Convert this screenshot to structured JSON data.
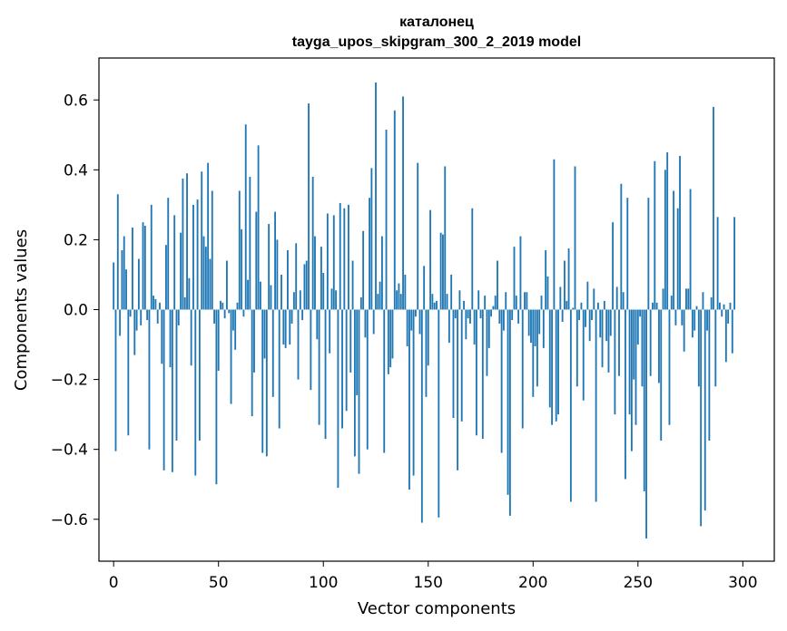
{
  "chart_data": {
    "type": "bar",
    "title_line1": "каталонец",
    "title_line2": "tayga_upos_skipgram_300_2_2019 model",
    "xlabel": "Vector components",
    "ylabel": "Components values",
    "xlim": [
      -7,
      315
    ],
    "ylim": [
      -0.72,
      0.72
    ],
    "x_ticks": [
      0,
      50,
      100,
      150,
      200,
      250,
      300
    ],
    "x_tick_labels": [
      "0",
      "50",
      "100",
      "150",
      "200",
      "250",
      "300"
    ],
    "y_ticks": [
      -0.6,
      -0.4,
      -0.2,
      0.0,
      0.2,
      0.4,
      0.6
    ],
    "y_tick_labels": [
      "−0.6",
      "−0.4",
      "−0.2",
      "0.0",
      "0.2",
      "0.4",
      "0.6"
    ],
    "bar_color": "#1f77b4",
    "grid": false,
    "values": [
      0.135,
      -0.405,
      0.33,
      -0.075,
      0.17,
      0.21,
      0.115,
      -0.36,
      -0.02,
      0.235,
      -0.13,
      -0.06,
      0.145,
      -0.045,
      0.25,
      0.24,
      -0.03,
      -0.4,
      0.3,
      0.04,
      0.03,
      -0.04,
      0.02,
      -0.155,
      -0.46,
      0.185,
      0.32,
      -0.165,
      -0.465,
      0.27,
      -0.375,
      -0.045,
      0.22,
      0.375,
      0.035,
      0.39,
      0.09,
      -0.16,
      0.3,
      -0.475,
      0.315,
      -0.375,
      0.395,
      0.21,
      0.18,
      0.42,
      0.145,
      0.34,
      -0.04,
      -0.5,
      -0.175,
      0.025,
      0.02,
      -0.025,
      0.14,
      -0.01,
      -0.27,
      -0.06,
      -0.115,
      0.02,
      0.34,
      0.23,
      -0.02,
      0.53,
      0.085,
      0.38,
      -0.305,
      -0.18,
      0.28,
      0.47,
      0.08,
      -0.41,
      -0.14,
      -0.42,
      0.245,
      0.07,
      -0.25,
      0.28,
      0.2,
      -0.34,
      0.1,
      -0.1,
      -0.11,
      0.17,
      -0.1,
      -0.04,
      0.05,
      0.19,
      -0.2,
      0.055,
      -0.03,
      0.13,
      0.14,
      0.59,
      -0.23,
      0.38,
      0.21,
      -0.085,
      -0.33,
      0.18,
      0.105,
      -0.37,
      0.275,
      -0.125,
      0.06,
      0.27,
      0.055,
      -0.51,
      0.305,
      -0.34,
      0.29,
      -0.29,
      0.3,
      -0.18,
      0.14,
      -0.42,
      -0.245,
      -0.47,
      0.035,
      0.225,
      -0.08,
      -0.4,
      0.32,
      0.405,
      -0.07,
      0.65,
      0.045,
      0.08,
      0.21,
      -0.41,
      0.515,
      -0.185,
      -0.165,
      -0.14,
      0.57,
      0.055,
      0.075,
      0.045,
      0.61,
      0.1,
      -0.105,
      -0.515,
      -0.06,
      -0.475,
      -0.02,
      0.42,
      -0.07,
      -0.61,
      0.125,
      -0.25,
      -0.16,
      0.285,
      0.045,
      0.02,
      0.025,
      -0.595,
      0.22,
      0.215,
      0.41,
      0.045,
      -0.095,
      0.1,
      -0.31,
      -0.025,
      -0.46,
      0.055,
      -0.32,
      0.025,
      -0.085,
      -0.025,
      -0.04,
      0.29,
      -0.1,
      -0.36,
      0.055,
      -0.025,
      -0.37,
      0.04,
      -0.19,
      -0.11,
      -0.02,
      0.01,
      0.04,
      0.14,
      -0.04,
      -0.41,
      -0.06,
      0.05,
      -0.53,
      -0.59,
      -0.03,
      0.18,
      0.04,
      -0.04,
      0.21,
      -0.34,
      0.05,
      0.05,
      -0.075,
      -0.095,
      -0.25,
      -0.105,
      -0.22,
      -0.07,
      0.04,
      -0.11,
      0.17,
      0.095,
      -0.28,
      -0.33,
      0.43,
      -0.32,
      -0.3,
      0.065,
      -0.035,
      0.14,
      0.025,
      0.175,
      -0.55,
      0.005,
      0.41,
      -0.22,
      -0.03,
      0.02,
      -0.26,
      -0.05,
      0.08,
      -0.09,
      -0.03,
      0.06,
      -0.55,
      0.02,
      -0.08,
      -0.165,
      0.025,
      -0.09,
      -0.18,
      -0.075,
      0.25,
      -0.3,
      0.065,
      -0.19,
      0.36,
      0.05,
      -0.485,
      0.32,
      -0.3,
      -0.405,
      -0.2,
      -0.33,
      -0.1,
      -0.02,
      -0.22,
      -0.52,
      -0.655,
      0.32,
      -0.19,
      0.02,
      0.425,
      0.02,
      -0.21,
      -0.375,
      0.06,
      0.4,
      0.45,
      -0.33,
      0.04,
      0.34,
      -0.045,
      0.29,
      0.44,
      -0.045,
      -0.12,
      0.06,
      0.06,
      0.345,
      -0.08,
      -0.06,
      0.01,
      -0.22,
      -0.62,
      0.05,
      -0.575,
      -0.06,
      -0.375,
      0.035,
      0.58,
      -0.22,
      0.265,
      0.02,
      -0.02,
      0.015,
      -0.15,
      -0.04,
      0.02,
      -0.125,
      0.265
    ]
  }
}
